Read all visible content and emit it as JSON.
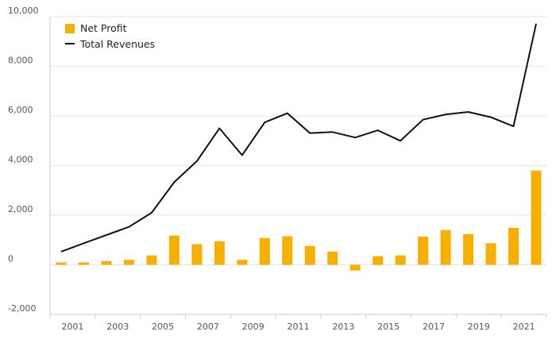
{
  "colors": {
    "bar": "#f7b000",
    "line": "#111111",
    "grid": "#e6e6e6",
    "axis": "#cccccc"
  },
  "chart_data": {
    "type": "bar+line",
    "title": "",
    "xlabel": "",
    "ylabel": "",
    "ylim": [
      -2000,
      10000
    ],
    "yticks": [
      -2000,
      0,
      2000,
      4000,
      6000,
      8000,
      10000
    ],
    "ytick_labels": [
      "-2,000",
      "0",
      "2,000",
      "4,000",
      "6,000",
      "8,000",
      "10,000"
    ],
    "categories": [
      "2001",
      "2002",
      "2003",
      "2004",
      "2005",
      "2006",
      "2007",
      "2008",
      "2009",
      "2010",
      "2011",
      "2012",
      "2013",
      "2014",
      "2015",
      "2016",
      "2017",
      "2018",
      "2019",
      "2020",
      "2021",
      "2022"
    ],
    "xtick_labels": [
      "2001",
      "2003",
      "2005",
      "2007",
      "2009",
      "2011",
      "2013",
      "2015",
      "2017",
      "2019",
      "2021"
    ],
    "legend_position": "top-left",
    "series": [
      {
        "name": "Net Profit",
        "type": "bar",
        "values": [
          100,
          100,
          150,
          200,
          380,
          1180,
          830,
          950,
          200,
          1080,
          1150,
          760,
          530,
          -230,
          350,
          380,
          1140,
          1400,
          1240,
          870,
          1490,
          3800
        ]
      },
      {
        "name": "Total Revenues",
        "type": "line",
        "values": [
          530,
          870,
          1200,
          1530,
          2100,
          3330,
          4180,
          5500,
          4420,
          5740,
          6110,
          5310,
          5350,
          5130,
          5420,
          5000,
          5850,
          6060,
          6160,
          5950,
          5580,
          9720
        ]
      }
    ]
  }
}
